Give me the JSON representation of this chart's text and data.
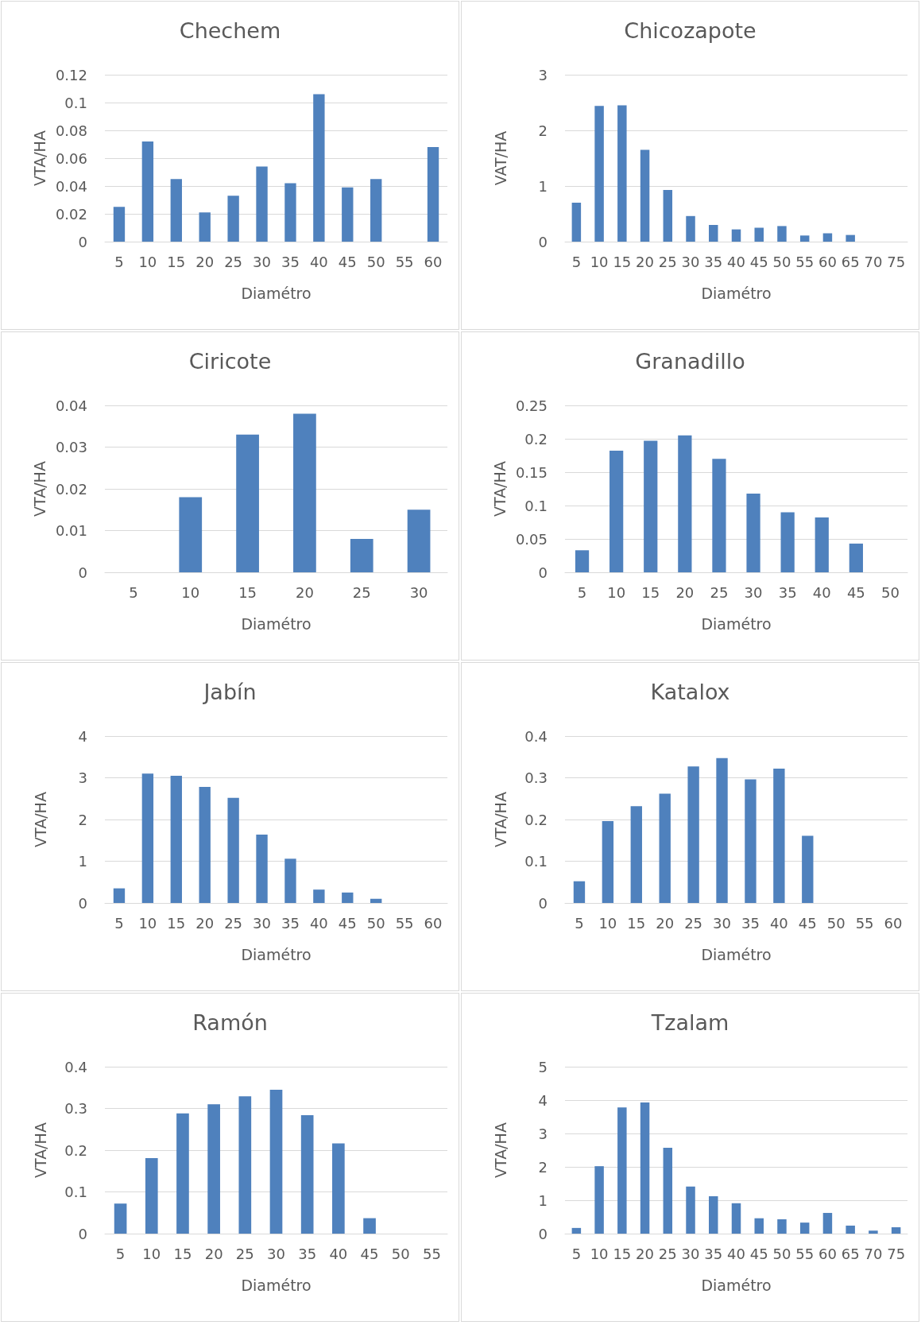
{
  "chart_data": [
    {
      "type": "bar",
      "title": "Chechem",
      "xlabel": "Diamétro",
      "ylabel": "VTA/HA",
      "categories": [
        "5",
        "10",
        "15",
        "20",
        "25",
        "30",
        "35",
        "40",
        "45",
        "50",
        "55",
        "60"
      ],
      "color": "#4f81bd",
      "values": [
        0.025,
        0.072,
        0.045,
        0.021,
        0.033,
        0.054,
        0.042,
        0.106,
        0.039,
        0.045,
        null,
        0.068
      ],
      "ylim": [
        0,
        0.12
      ],
      "yticks": [
        0,
        0.02,
        0.04,
        0.06,
        0.08,
        0.1,
        0.12
      ],
      "grid": "y"
    },
    {
      "type": "bar",
      "title": "Chicozapote",
      "xlabel": "Diamétro",
      "ylabel": "VAT/HA",
      "categories": [
        "5",
        "10",
        "15",
        "20",
        "25",
        "30",
        "35",
        "40",
        "45",
        "50",
        "55",
        "60",
        "65",
        "70",
        "75"
      ],
      "color": "#4f81bd",
      "values": [
        0.7,
        2.44,
        2.45,
        1.65,
        0.93,
        0.46,
        0.3,
        0.22,
        0.25,
        0.28,
        0.11,
        0.15,
        0.12,
        null,
        null
      ],
      "ylim": [
        0,
        3
      ],
      "yticks": [
        0,
        1,
        2,
        3
      ],
      "grid": "y"
    },
    {
      "type": "bar",
      "title": "Ciricote",
      "xlabel": "Diamétro",
      "ylabel": "VTA/HA",
      "categories": [
        "5",
        "10",
        "15",
        "20",
        "25",
        "30"
      ],
      "color": "#4f81bd",
      "values": [
        null,
        0.018,
        0.033,
        0.038,
        0.008,
        0.015
      ],
      "ylim": [
        0,
        0.04
      ],
      "yticks": [
        0,
        0.01,
        0.02,
        0.03,
        0.04
      ],
      "grid": "y"
    },
    {
      "type": "bar",
      "title": "Granadillo",
      "xlabel": "Diamétro",
      "ylabel": "VTA/HA",
      "categories": [
        "5",
        "10",
        "15",
        "20",
        "25",
        "30",
        "35",
        "40",
        "45",
        "50"
      ],
      "color": "#4f81bd",
      "values": [
        0.033,
        0.182,
        0.197,
        0.205,
        0.17,
        0.118,
        0.09,
        0.082,
        0.043,
        null
      ],
      "ylim": [
        0,
        0.25
      ],
      "yticks": [
        0,
        0.05,
        0.1,
        0.15,
        0.2,
        0.25
      ],
      "grid": "y"
    },
    {
      "type": "bar",
      "title": "Jabín",
      "xlabel": "Diamétro",
      "ylabel": "VTA/HA",
      "categories": [
        "5",
        "10",
        "15",
        "20",
        "25",
        "30",
        "35",
        "40",
        "45",
        "50",
        "55",
        "60"
      ],
      "color": "#4f81bd",
      "values": [
        0.35,
        3.1,
        3.05,
        2.78,
        2.52,
        1.64,
        1.06,
        0.32,
        0.25,
        0.1,
        null,
        null
      ],
      "ylim": [
        0,
        4
      ],
      "yticks": [
        0,
        1,
        2,
        3,
        4
      ],
      "grid": "y"
    },
    {
      "type": "bar",
      "title": "Katalox",
      "xlabel": "Diamétro",
      "ylabel": "VTA/HA",
      "categories": [
        "5",
        "10",
        "15",
        "20",
        "25",
        "30",
        "35",
        "40",
        "45",
        "50",
        "55",
        "60"
      ],
      "color": "#4f81bd",
      "values": [
        0.052,
        0.196,
        0.232,
        0.262,
        0.327,
        0.347,
        0.296,
        0.322,
        0.161,
        null,
        null,
        null
      ],
      "ylim": [
        0,
        0.4
      ],
      "yticks": [
        0,
        0.1,
        0.2,
        0.3,
        0.4
      ],
      "grid": "y"
    },
    {
      "type": "bar",
      "title": "Ramón",
      "xlabel": "Diamétro",
      "ylabel": "VTA/HA",
      "categories": [
        "5",
        "10",
        "15",
        "20",
        "25",
        "30",
        "35",
        "40",
        "45",
        "50",
        "55"
      ],
      "color": "#4f81bd",
      "values": [
        0.072,
        0.181,
        0.288,
        0.31,
        0.329,
        0.345,
        0.284,
        0.216,
        0.037,
        null,
        null
      ],
      "ylim": [
        0,
        0.4
      ],
      "yticks": [
        0,
        0.1,
        0.2,
        0.3,
        0.4
      ],
      "grid": "y"
    },
    {
      "type": "bar",
      "title": "Tzalam",
      "xlabel": "Diamétro",
      "ylabel": "VTA/HA",
      "categories": [
        "5",
        "10",
        "15",
        "20",
        "25",
        "30",
        "35",
        "40",
        "45",
        "50",
        "55",
        "60",
        "65",
        "70",
        "75"
      ],
      "color": "#4f81bd",
      "values": [
        0.17,
        2.02,
        3.78,
        3.93,
        2.57,
        1.41,
        1.12,
        0.91,
        0.46,
        0.43,
        0.33,
        0.62,
        0.24,
        0.09,
        0.19
      ],
      "ylim": [
        0,
        5
      ],
      "yticks": [
        0,
        1,
        2,
        3,
        4,
        5
      ],
      "grid": "y"
    }
  ]
}
